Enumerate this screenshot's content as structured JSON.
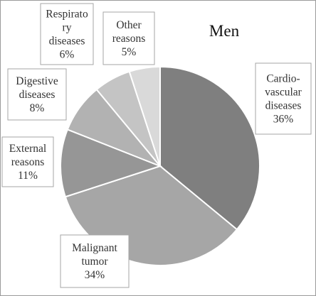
{
  "chart_data": {
    "type": "pie",
    "title": "Men",
    "slices": [
      {
        "lines": [
          "Cardio-",
          "vascular",
          "diseases",
          "36%"
        ],
        "value": 36,
        "color": "#7f7f7f"
      },
      {
        "lines": [
          "Malignant",
          "tumor",
          "34%"
        ],
        "value": 34,
        "color": "#a6a6a6"
      },
      {
        "lines": [
          "External",
          "reasons",
          "11%"
        ],
        "value": 11,
        "color": "#969696"
      },
      {
        "lines": [
          "Digestive",
          "diseases",
          "8%"
        ],
        "value": 8,
        "color": "#b2b2b2"
      },
      {
        "lines": [
          "Respirato",
          "ry",
          "diseases",
          "6%"
        ],
        "value": 6,
        "color": "#c4c4c4"
      },
      {
        "lines": [
          "Other",
          "reasons",
          "5%"
        ],
        "value": 5,
        "color": "#d9d9d9"
      }
    ]
  }
}
